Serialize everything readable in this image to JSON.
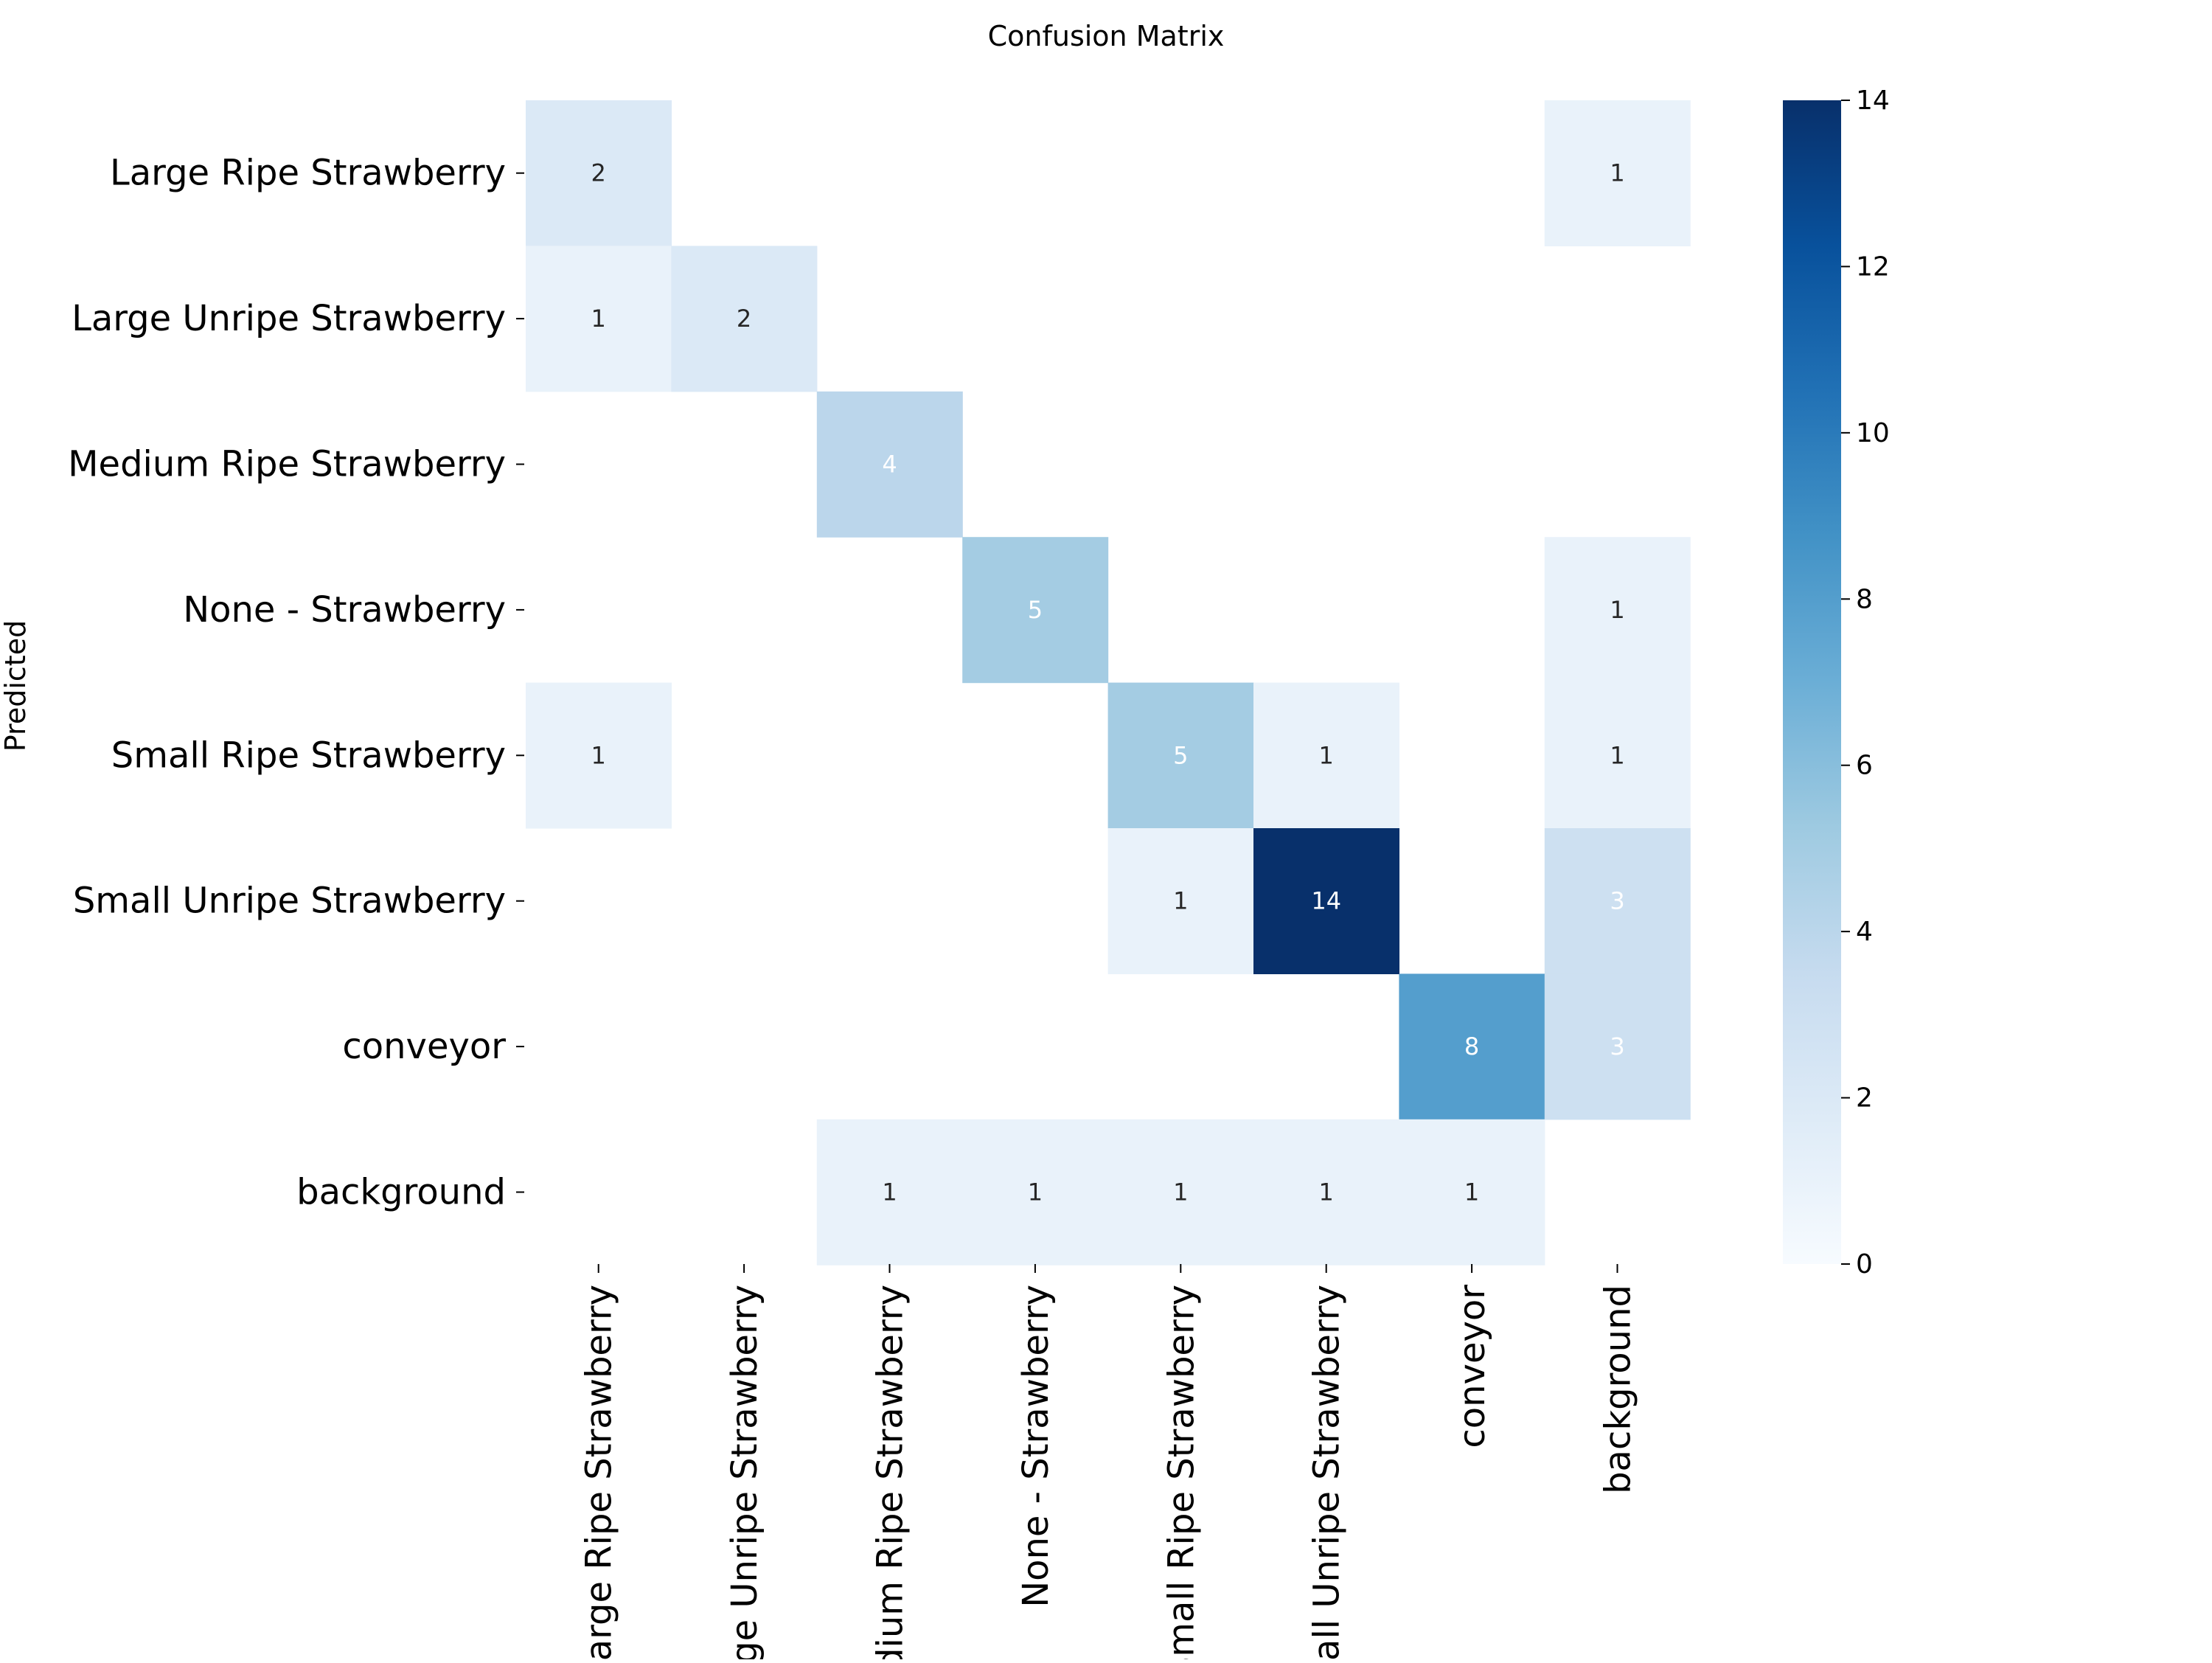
{
  "chart_data": {
    "type": "heatmap",
    "title": "Confusion Matrix",
    "ylabel": "Predicted",
    "xlabel": "",
    "row_labels": [
      "Large Ripe Strawberry",
      "Large Unripe Strawberry",
      "Medium Ripe Strawberry",
      "None - Strawberry",
      "Small Ripe Strawberry",
      "Small Unripe Strawberry",
      "conveyor",
      "background"
    ],
    "col_labels": [
      "Large Ripe Strawberry",
      "Large Unripe Strawberry",
      "Medium Ripe Strawberry",
      "None - Strawberry",
      "Small Ripe Strawberry",
      "Small Unripe Strawberry",
      "conveyor",
      "background"
    ],
    "values": [
      [
        2,
        0,
        0,
        0,
        0,
        0,
        0,
        1
      ],
      [
        1,
        2,
        0,
        0,
        0,
        0,
        0,
        0
      ],
      [
        0,
        0,
        4,
        0,
        0,
        0,
        0,
        0
      ],
      [
        0,
        0,
        0,
        5,
        0,
        0,
        0,
        1
      ],
      [
        1,
        0,
        0,
        0,
        5,
        1,
        0,
        1
      ],
      [
        0,
        0,
        0,
        0,
        1,
        14,
        0,
        3
      ],
      [
        0,
        0,
        0,
        0,
        0,
        0,
        8,
        3
      ],
      [
        0,
        0,
        1,
        1,
        1,
        1,
        1,
        0
      ]
    ],
    "zero_cells_blank": true,
    "colorscale": "Blues",
    "colorbar": {
      "min": 0,
      "max": 14,
      "ticks": [
        0,
        2,
        4,
        6,
        8,
        10,
        12,
        14
      ]
    }
  }
}
